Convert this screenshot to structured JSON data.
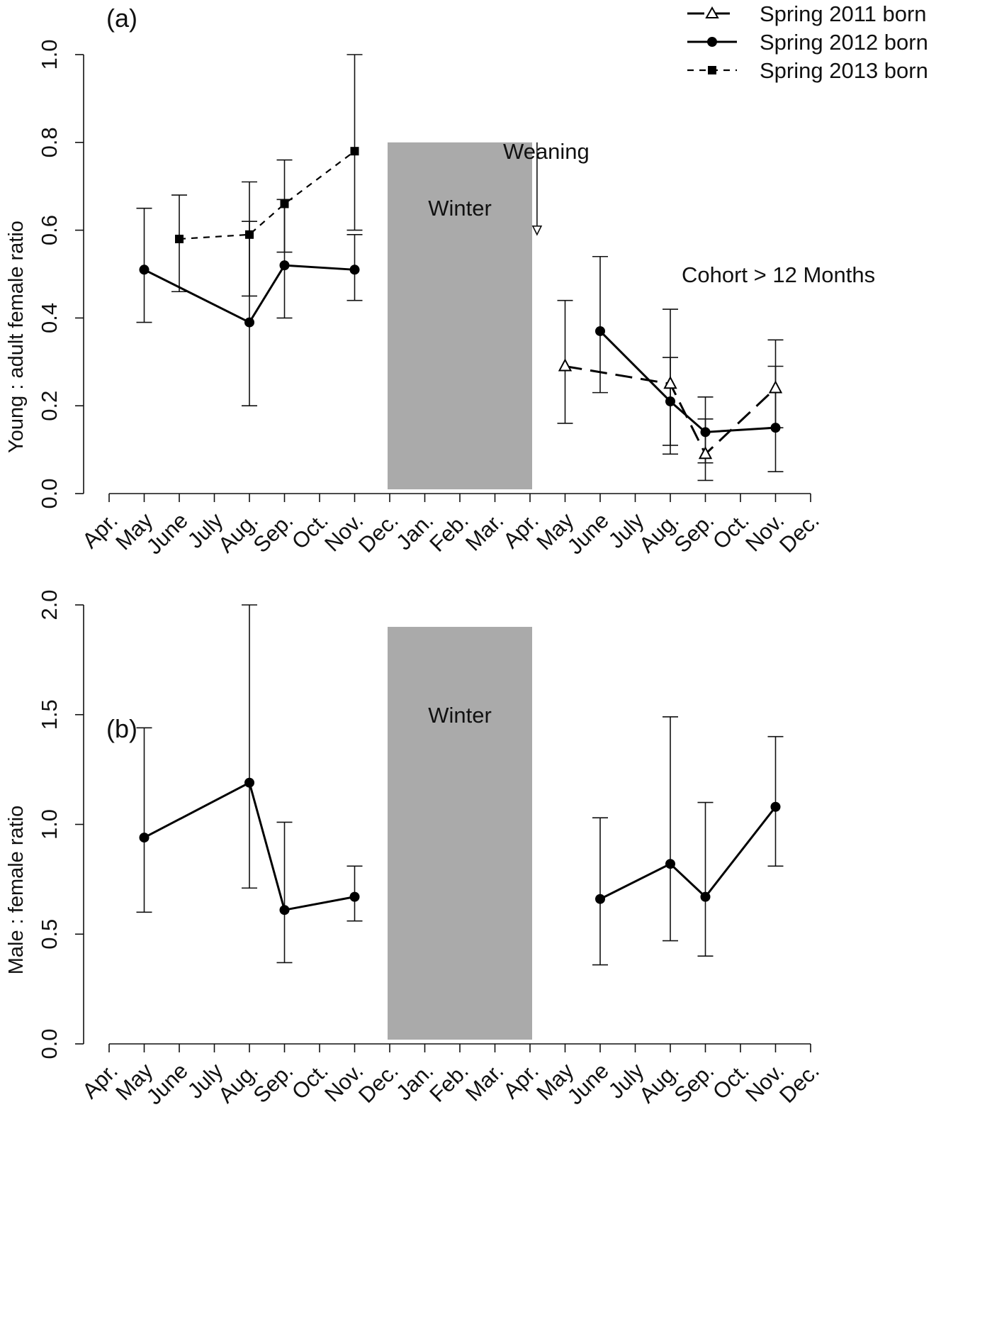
{
  "chart_data": [
    {
      "type": "line",
      "panel_label": "(a)",
      "ylabel": "Young : adult female ratio",
      "xlabel": "",
      "ylim": [
        0,
        1.0
      ],
      "yticks": [
        0.0,
        0.2,
        0.4,
        0.6,
        0.8,
        1.0
      ],
      "ytick_labels": [
        "0.0",
        "0.2",
        "0.4",
        "0.6",
        "0.8",
        "1.0"
      ],
      "categories": [
        "Apr.",
        "May",
        "June",
        "July",
        "Aug.",
        "Sep.",
        "Oct.",
        "Nov.",
        "Dec.",
        "Jan.",
        "Feb.",
        "Mar.",
        "Apr.",
        "May",
        "June",
        "July",
        "Aug.",
        "Sep.",
        "Oct.",
        "Nov.",
        "Dec."
      ],
      "series": [
        {
          "name": "Spring 2011 born",
          "line_style": "long-dash",
          "marker": "open-triangle",
          "points": [
            {
              "x": 13,
              "y": 0.29,
              "lo": 0.16,
              "hi": 0.44
            },
            {
              "x": 16,
              "y": 0.25,
              "lo": 0.11,
              "hi": 0.42
            },
            {
              "x": 17,
              "y": 0.09,
              "lo": 0.03,
              "hi": 0.17
            },
            {
              "x": 19,
              "y": 0.24,
              "lo": 0.15,
              "hi": 0.35
            }
          ]
        },
        {
          "name": "Spring 2012 born",
          "line_style": "solid",
          "marker": "filled-circle",
          "segments": [
            [
              {
                "x": 1,
                "y": 0.51,
                "lo": 0.39,
                "hi": 0.65
              },
              {
                "x": 4,
                "y": 0.39,
                "lo": 0.2,
                "hi": 0.62
              },
              {
                "x": 5,
                "y": 0.52,
                "lo": 0.4,
                "hi": 0.67
              },
              {
                "x": 7,
                "y": 0.51,
                "lo": 0.44,
                "hi": 0.59
              }
            ],
            [
              {
                "x": 14,
                "y": 0.37,
                "lo": 0.23,
                "hi": 0.54
              },
              {
                "x": 16,
                "y": 0.21,
                "lo": 0.09,
                "hi": 0.31
              },
              {
                "x": 17,
                "y": 0.14,
                "lo": 0.07,
                "hi": 0.22
              },
              {
                "x": 19,
                "y": 0.15,
                "lo": 0.05,
                "hi": 0.29
              }
            ]
          ]
        },
        {
          "name": "Spring 2013 born",
          "line_style": "short-dash",
          "marker": "filled-square",
          "points": [
            {
              "x": 2,
              "y": 0.58,
              "lo": 0.46,
              "hi": 0.68
            },
            {
              "x": 4,
              "y": 0.59,
              "lo": 0.45,
              "hi": 0.71
            },
            {
              "x": 5,
              "y": 0.66,
              "lo": 0.55,
              "hi": 0.76
            },
            {
              "x": 7,
              "y": 0.78,
              "lo": 0.6,
              "hi": 1.0
            }
          ]
        }
      ],
      "shaded_region": {
        "label": "Winter",
        "x_start": 8,
        "x_end": 12,
        "y_top": 0.8,
        "color": "#aaaaaa"
      },
      "annotations": [
        {
          "text": "Weaning",
          "arrow_x": 12.2,
          "arrow_y_from": 0.8,
          "arrow_y_to": 0.59
        },
        {
          "text": "Cohort > 12 Months",
          "x": 13.2,
          "y": 0.6
        }
      ],
      "legend": {
        "position": "top-right",
        "entries": [
          "Spring 2011 born",
          "Spring 2012 born",
          "Spring 2013 born"
        ]
      }
    },
    {
      "type": "line",
      "panel_label": "(b)",
      "ylabel": "Male : female ratio",
      "xlabel": "",
      "ylim": [
        0,
        2.0
      ],
      "yticks": [
        0.0,
        0.5,
        1.0,
        1.5,
        2.0
      ],
      "ytick_labels": [
        "0.0",
        "0.5",
        "1.0",
        "1.5",
        "2.0"
      ],
      "categories": [
        "Apr.",
        "May",
        "June",
        "July",
        "Aug.",
        "Sep.",
        "Oct.",
        "Nov.",
        "Dec.",
        "Jan.",
        "Feb.",
        "Mar.",
        "Apr.",
        "May",
        "June",
        "July",
        "Aug.",
        "Sep.",
        "Oct.",
        "Nov.",
        "Dec."
      ],
      "series": [
        {
          "name": "Male : female ratio",
          "line_style": "solid",
          "marker": "filled-circle",
          "segments": [
            [
              {
                "x": 1,
                "y": 0.94,
                "lo": 0.6,
                "hi": 1.44
              },
              {
                "x": 4,
                "y": 1.19,
                "lo": 0.71,
                "hi": 2.0
              },
              {
                "x": 5,
                "y": 0.61,
                "lo": 0.37,
                "hi": 1.01
              },
              {
                "x": 7,
                "y": 0.67,
                "lo": 0.56,
                "hi": 0.81
              }
            ],
            [
              {
                "x": 14,
                "y": 0.66,
                "lo": 0.36,
                "hi": 1.03
              },
              {
                "x": 16,
                "y": 0.82,
                "lo": 0.47,
                "hi": 1.49
              },
              {
                "x": 17,
                "y": 0.67,
                "lo": 0.4,
                "hi": 1.1
              },
              {
                "x": 19,
                "y": 1.08,
                "lo": 0.81,
                "hi": 1.4
              }
            ]
          ]
        }
      ],
      "shaded_region": {
        "label": "Winter",
        "x_start": 8,
        "x_end": 12,
        "y_top": 1.9,
        "color": "#aaaaaa"
      }
    }
  ]
}
